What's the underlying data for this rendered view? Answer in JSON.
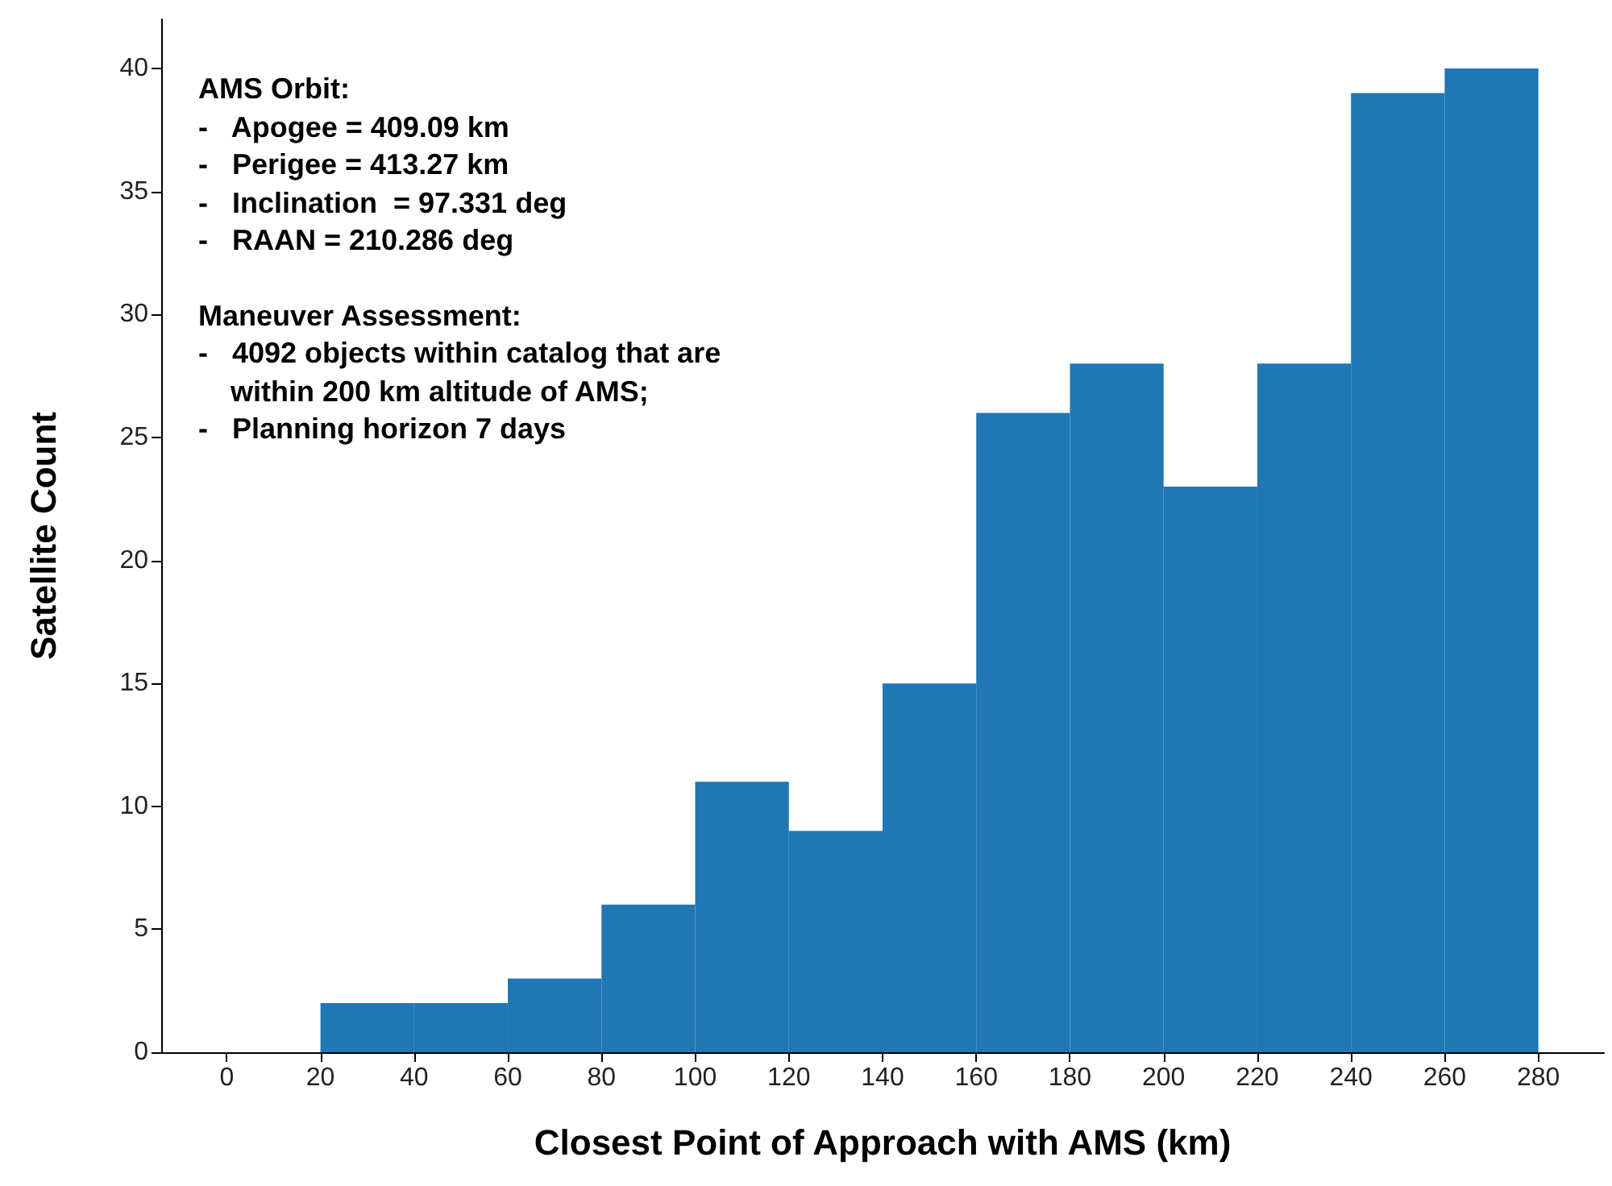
{
  "chart_data": {
    "type": "histogram",
    "xlabel": "Closest Point of Approach with AMS (km)",
    "ylabel": "Satellite Count",
    "bins": [
      0,
      20,
      40,
      60,
      80,
      100,
      120,
      140,
      160,
      180,
      200,
      220,
      240,
      260,
      280
    ],
    "values": [
      0,
      2,
      2,
      3,
      6,
      11,
      9,
      15,
      26,
      28,
      23,
      28,
      39,
      40
    ],
    "color": "#1f77b4",
    "xlim": [
      -14,
      294
    ],
    "xticks": [
      0,
      20,
      40,
      60,
      80,
      100,
      120,
      140,
      160,
      180,
      200,
      220,
      240,
      260,
      280
    ],
    "ylim": [
      0,
      42
    ],
    "yticks": [
      0,
      5,
      10,
      15,
      20,
      25,
      30,
      35,
      40
    ],
    "grid": false,
    "annotations": [
      "AMS Orbit:\n-   Apogee = 409.09 km\n-   Perigee = 413.27 km\n-   Inclination  = 97.331 deg\n-   RAAN = 210.286 deg",
      "Maneuver Assessment:\n-   4092 objects within catalog that are\n    within 200 km altitude of AMS;\n-   Planning horizon 7 days"
    ]
  }
}
